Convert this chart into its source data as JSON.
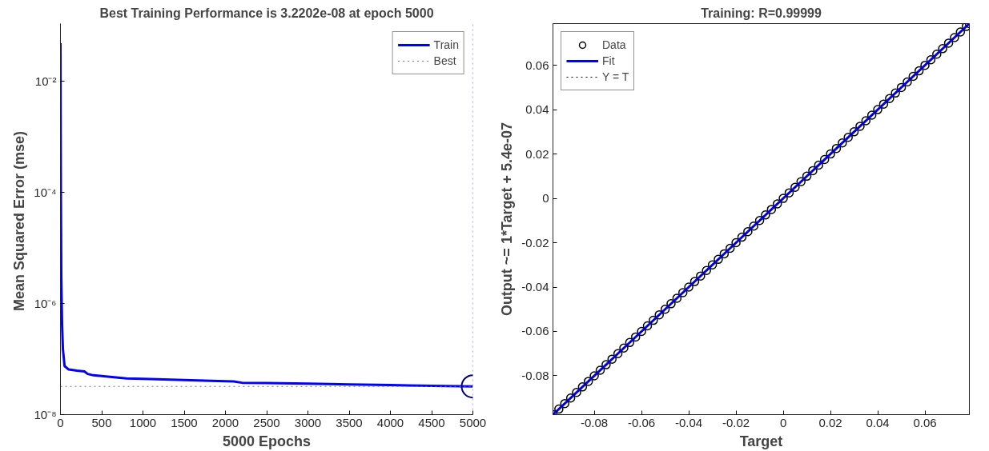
{
  "chart_data": [
    {
      "type": "line",
      "title": "Best Training Performance is 3.2202e-08 at epoch 5000",
      "xlabel": "5000 Epochs",
      "ylabel": "Mean Squared Error  (mse)",
      "log": "y",
      "grid": false,
      "legend": "top right",
      "xlim": [
        0,
        5000
      ],
      "xticks": [
        0,
        500,
        1000,
        1500,
        2000,
        2500,
        3000,
        3500,
        4000,
        4500,
        5000
      ],
      "ylim": [
        1e-08,
        0.11
      ],
      "yticks": [
        {
          "value": 1e-08,
          "label": "10⁻⁸"
        },
        {
          "value": 1e-06,
          "label": "10⁻⁶"
        },
        {
          "value": 0.0001,
          "label": "10⁻⁴"
        },
        {
          "value": 0.01,
          "label": "10⁻²"
        }
      ],
      "series": [
        {
          "name": "Train",
          "color": "#0000ff",
          "x": [
            0,
            2,
            5,
            10,
            15,
            20,
            30,
            50,
            100,
            200,
            290,
            330,
            400,
            600,
            800,
            1000,
            1500,
            2000,
            2100,
            2200,
            2500,
            3000,
            3500,
            4000,
            4500,
            5000
          ],
          "values": [
            0.049,
            0.003,
            0.0001,
            3e-06,
            1e-06,
            4e-07,
            1.5e-07,
            7.5e-08,
            6.5e-08,
            6.2e-08,
            6e-08,
            5.4e-08,
            5.1e-08,
            4.8e-08,
            4.5e-08,
            4.4e-08,
            4.2e-08,
            4e-08,
            3.95e-08,
            3.75e-08,
            3.7e-08,
            3.6e-08,
            3.5e-08,
            3.4e-08,
            3.3e-08,
            3.2202e-08
          ]
        },
        {
          "type": "scatter",
          "marker": "circle",
          "color": "#000080",
          "x": [
            5000
          ],
          "values": [
            3.2202e-08
          ]
        }
      ],
      "ref_lines": [
        {
          "axis": "x",
          "value": 5000,
          "label": "Best",
          "color": "#6666ff",
          "line_style": "dotted"
        },
        {
          "axis": "y",
          "value": 3.2202e-08,
          "color": "#6666ff",
          "line_style": "dotted"
        }
      ]
    },
    {
      "type": "scatter",
      "title": "Training: R=0.99999",
      "xlabel": "Target",
      "ylabel": "Output ~= 1*Target + 5.4e-07",
      "grid": false,
      "legend": "top left",
      "xlim": [
        -0.0975,
        0.0788
      ],
      "xticks": [
        -0.08,
        -0.06,
        -0.04,
        -0.02,
        0,
        0.02,
        0.04,
        0.06
      ],
      "ylim": [
        -0.0975,
        0.0788
      ],
      "yticks": [
        -0.08,
        -0.06,
        -0.04,
        -0.02,
        0,
        0.02,
        0.04,
        0.06
      ],
      "series": [
        {
          "name": "Data",
          "marker": "circle",
          "color": "#000000",
          "x": [
            -0.0975,
            -0.095,
            -0.0925,
            -0.09,
            -0.0875,
            -0.085,
            -0.0825,
            -0.08,
            -0.0775,
            -0.075,
            -0.0725,
            -0.07,
            -0.0675,
            -0.065,
            -0.0625,
            -0.06,
            -0.0575,
            -0.055,
            -0.0525,
            -0.05,
            -0.0475,
            -0.045,
            -0.0425,
            -0.04,
            -0.0375,
            -0.035,
            -0.0325,
            -0.03,
            -0.0275,
            -0.025,
            -0.0225,
            -0.02,
            -0.0175,
            -0.015,
            -0.0125,
            -0.01,
            -0.0075,
            -0.005,
            -0.0025,
            0,
            0.0025,
            0.005,
            0.0075,
            0.01,
            0.0125,
            0.015,
            0.0175,
            0.02,
            0.0225,
            0.025,
            0.0275,
            0.03,
            0.0325,
            0.035,
            0.0375,
            0.04,
            0.0425,
            0.045,
            0.0475,
            0.05,
            0.0525,
            0.055,
            0.0575,
            0.06,
            0.0625,
            0.065,
            0.0675,
            0.07,
            0.0725,
            0.075,
            0.0775,
            0.0788
          ],
          "values": [
            -0.0975,
            -0.095,
            -0.0925,
            -0.09,
            -0.0875,
            -0.085,
            -0.0825,
            -0.08,
            -0.0775,
            -0.075,
            -0.0725,
            -0.07,
            -0.0675,
            -0.065,
            -0.0625,
            -0.06,
            -0.0575,
            -0.055,
            -0.0525,
            -0.05,
            -0.0475,
            -0.045,
            -0.0425,
            -0.04,
            -0.0375,
            -0.035,
            -0.0325,
            -0.03,
            -0.0275,
            -0.025,
            -0.0225,
            -0.02,
            -0.0175,
            -0.015,
            -0.0125,
            -0.01,
            -0.0075,
            -0.005,
            -0.0025,
            0,
            0.0025,
            0.005,
            0.0075,
            0.01,
            0.0125,
            0.015,
            0.0175,
            0.02,
            0.0225,
            0.025,
            0.0275,
            0.03,
            0.0325,
            0.035,
            0.0375,
            0.04,
            0.0425,
            0.045,
            0.0475,
            0.05,
            0.0525,
            0.055,
            0.0575,
            0.06,
            0.0625,
            0.065,
            0.0675,
            0.07,
            0.0725,
            0.075,
            0.0775,
            0.0788
          ]
        },
        {
          "name": "Fit",
          "type": "line",
          "color": "#0000ff",
          "x": [
            -0.0975,
            0.0788
          ],
          "values": [
            -0.0975,
            0.0788
          ]
        },
        {
          "name": "Y = T",
          "type": "line",
          "line_style": "dotted",
          "color": "#000000",
          "x": [
            -0.0975,
            0.0788
          ],
          "values": [
            -0.0975,
            0.0788
          ]
        }
      ]
    }
  ]
}
